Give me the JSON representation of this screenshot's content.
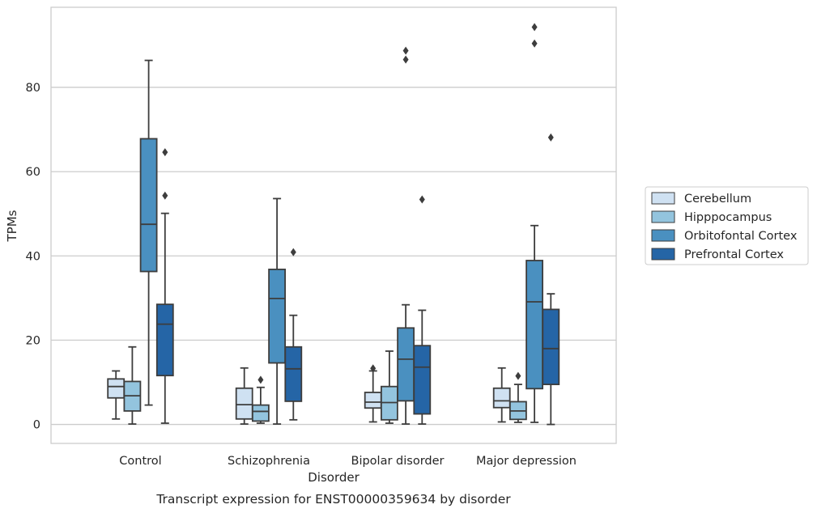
{
  "chart_data": {
    "type": "box",
    "xlabel": "Disorder",
    "ylabel": "TPMs",
    "caption": "Transcript expression for ENST00000359634 by disorder",
    "ylim": [
      -4.5,
      99
    ],
    "yticks": [
      0,
      20,
      40,
      60,
      80
    ],
    "yticks_labels": [
      "0",
      "20",
      "40",
      "60",
      "80"
    ],
    "grid": "horizontal",
    "legend_position": "right",
    "categories": [
      "Control",
      "Schizophrenia",
      "Bipolar disorder",
      "Major depression"
    ],
    "series": [
      {
        "name": "Cerebellum",
        "color": "#cfe1f2",
        "boxes": [
          {
            "category": "Control",
            "whisker_low": 1.3,
            "q1": 6.3,
            "median": 9.0,
            "q3": 10.8,
            "whisker_high": 12.7,
            "outliers": []
          },
          {
            "category": "Schizophrenia",
            "whisker_low": 0.1,
            "q1": 1.3,
            "median": 4.7,
            "q3": 8.6,
            "whisker_high": 13.4,
            "outliers": []
          },
          {
            "category": "Bipolar disorder",
            "whisker_low": 0.6,
            "q1": 3.9,
            "median": 5.3,
            "q3": 7.6,
            "whisker_high": 12.7,
            "outliers": [
              13.3
            ]
          },
          {
            "category": "Major depression",
            "whisker_low": 0.6,
            "q1": 4.0,
            "median": 5.6,
            "q3": 8.6,
            "whisker_high": 13.4,
            "outliers": []
          }
        ]
      },
      {
        "name": "Hipppocampus",
        "color": "#93c4de",
        "boxes": [
          {
            "category": "Control",
            "whisker_low": 0.1,
            "q1": 3.2,
            "median": 6.8,
            "q3": 10.2,
            "whisker_high": 18.4,
            "outliers": []
          },
          {
            "category": "Schizophrenia",
            "whisker_low": 0.3,
            "q1": 0.8,
            "median": 3.1,
            "q3": 4.6,
            "whisker_high": 8.8,
            "outliers": [
              10.6
            ]
          },
          {
            "category": "Bipolar disorder",
            "whisker_low": 0.3,
            "q1": 1.1,
            "median": 5.2,
            "q3": 9.0,
            "whisker_high": 17.4,
            "outliers": []
          },
          {
            "category": "Major depression",
            "whisker_low": 0.5,
            "q1": 1.2,
            "median": 3.2,
            "q3": 5.4,
            "whisker_high": 9.5,
            "outliers": [
              11.5
            ]
          }
        ]
      },
      {
        "name": "Orbitofontal Cortex",
        "color": "#4a90c0",
        "boxes": [
          {
            "category": "Control",
            "whisker_low": 4.6,
            "q1": 36.3,
            "median": 47.5,
            "q3": 67.8,
            "whisker_high": 86.4,
            "outliers": []
          },
          {
            "category": "Schizophrenia",
            "whisker_low": 0.1,
            "q1": 14.6,
            "median": 29.9,
            "q3": 36.8,
            "whisker_high": 53.6,
            "outliers": []
          },
          {
            "category": "Bipolar disorder",
            "whisker_low": 0.1,
            "q1": 5.6,
            "median": 15.5,
            "q3": 22.9,
            "whisker_high": 28.4,
            "outliers": [
              86.6,
              88.7
            ]
          },
          {
            "category": "Major depression",
            "whisker_low": 0.5,
            "q1": 8.5,
            "median": 29.1,
            "q3": 38.9,
            "whisker_high": 47.2,
            "outliers": [
              90.4,
              94.3
            ]
          }
        ]
      },
      {
        "name": "Prefrontal Cortex",
        "color": "#2565a6",
        "boxes": [
          {
            "category": "Control",
            "whisker_low": 0.3,
            "q1": 11.6,
            "median": 23.8,
            "q3": 28.5,
            "whisker_high": 50.1,
            "outliers": [
              54.3,
              64.6
            ]
          },
          {
            "category": "Schizophrenia",
            "whisker_low": 1.1,
            "q1": 5.5,
            "median": 13.2,
            "q3": 18.4,
            "whisker_high": 25.9,
            "outliers": [
              40.9
            ]
          },
          {
            "category": "Bipolar disorder",
            "whisker_low": 0.1,
            "q1": 2.5,
            "median": 13.6,
            "q3": 18.7,
            "whisker_high": 27.1,
            "outliers": [
              53.4
            ]
          },
          {
            "category": "Major depression",
            "whisker_low": 0.0,
            "q1": 9.5,
            "median": 18.0,
            "q3": 27.3,
            "whisker_high": 31.0,
            "outliers": [
              68.1
            ]
          }
        ]
      }
    ]
  }
}
